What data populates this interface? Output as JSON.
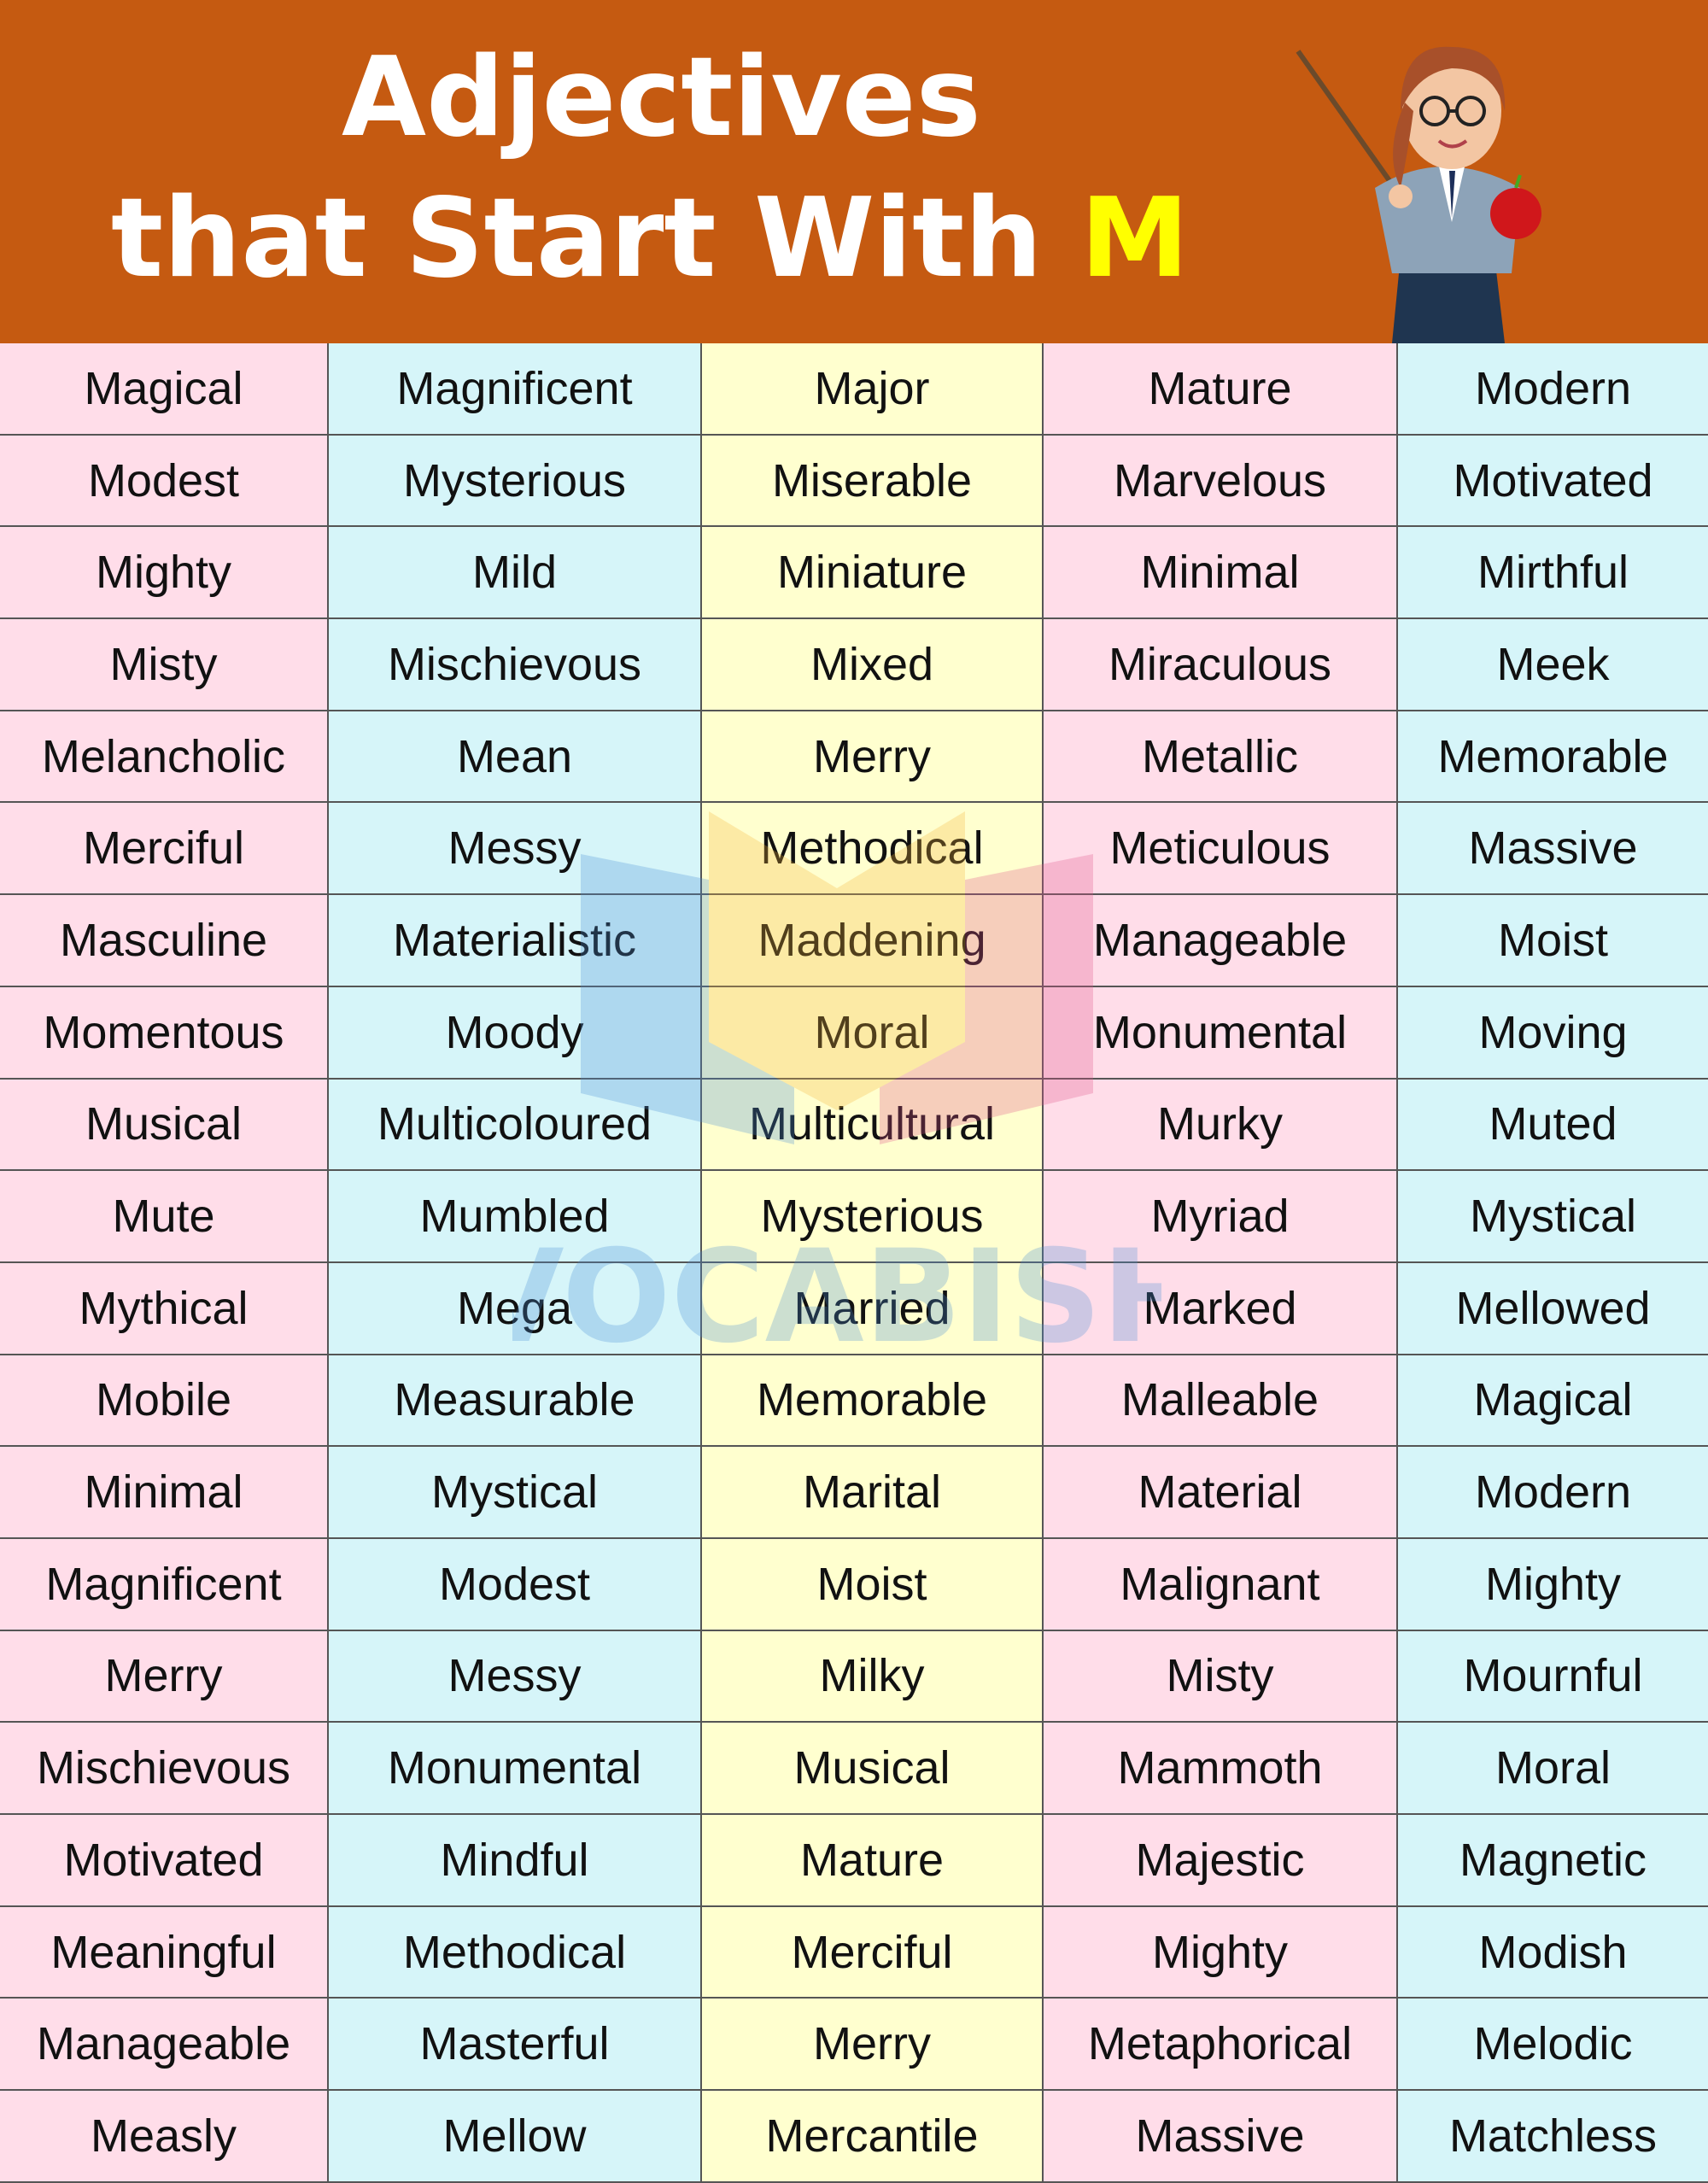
{
  "header": {
    "title_line1": "Adjectives",
    "title_line2_prefix": "that Start With ",
    "title_letter": "M",
    "background_color": "#c55a11",
    "letter_color": "#ffff00"
  },
  "watermark": {
    "text": "VOCABISH"
  },
  "column_colors": [
    "#ffdde9",
    "#d6f5f9",
    "#ffffcf",
    "#ffdde9",
    "#d6f5f9"
  ],
  "rows": [
    [
      "Magical",
      "Magnificent",
      "Major",
      "Mature",
      "Modern"
    ],
    [
      "Modest",
      "Mysterious",
      "Miserable",
      "Marvelous",
      "Motivated"
    ],
    [
      "Mighty",
      "Mild",
      "Miniature",
      "Minimal",
      "Mirthful"
    ],
    [
      "Misty",
      "Mischievous",
      "Mixed",
      "Miraculous",
      "Meek"
    ],
    [
      "Melancholic",
      "Mean",
      "Merry",
      "Metallic",
      "Memorable"
    ],
    [
      "Merciful",
      "Messy",
      "Methodical",
      "Meticulous",
      "Massive"
    ],
    [
      "Masculine",
      "Materialistic",
      "Maddening",
      "Manageable",
      "Moist"
    ],
    [
      "Momentous",
      "Moody",
      "Moral",
      "Monumental",
      "Moving"
    ],
    [
      "Musical",
      "Multicoloured",
      "Multicultural",
      "Murky",
      "Muted"
    ],
    [
      "Mute",
      "Mumbled",
      "Mysterious",
      "Myriad",
      "Mystical"
    ],
    [
      "Mythical",
      "Mega",
      "Married",
      "Marked",
      "Mellowed"
    ],
    [
      "Mobile",
      "Measurable",
      "Memorable",
      "Malleable",
      "Magical"
    ],
    [
      "Minimal",
      "Mystical",
      "Marital",
      "Material",
      "Modern"
    ],
    [
      "Magnificent",
      "Modest",
      "Moist",
      "Malignant",
      "Mighty"
    ],
    [
      "Merry",
      "Messy",
      "Milky",
      "Misty",
      "Mournful"
    ],
    [
      "Mischievous",
      "Monumental",
      "Musical",
      "Mammoth",
      "Moral"
    ],
    [
      "Motivated",
      "Mindful",
      "Mature",
      "Majestic",
      "Magnetic"
    ],
    [
      "Meaningful",
      "Methodical",
      "Merciful",
      "Mighty",
      "Modish"
    ],
    [
      "Manageable",
      "Masterful",
      "Merry",
      "Metaphorical",
      "Melodic"
    ],
    [
      "Measly",
      "Mellow",
      "Mercantile",
      "Massive",
      "Matchless"
    ]
  ]
}
